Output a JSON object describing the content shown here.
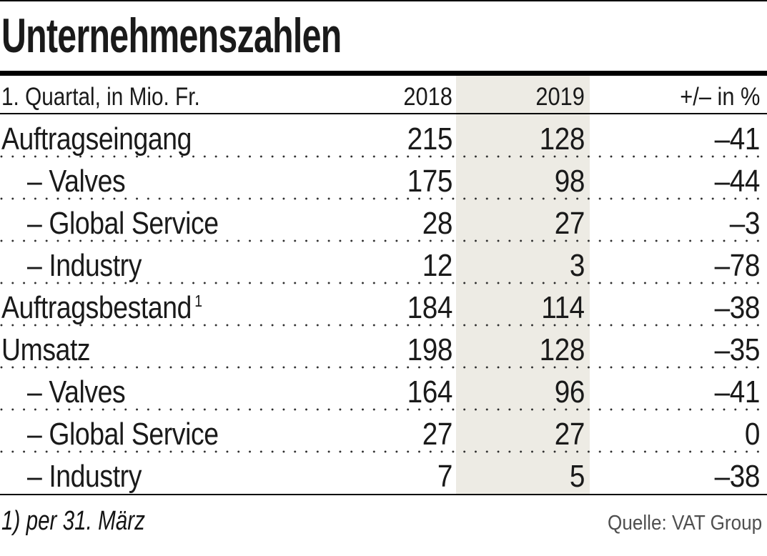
{
  "title": "Unternehmenszahlen",
  "table": {
    "header": {
      "label": "1. Quartal, in Mio. Fr.",
      "col_2018": "2018",
      "col_2019": "2019",
      "col_change": "+/– in %"
    },
    "rows": [
      {
        "label": "Auftragseingang",
        "indent": false,
        "v2018": "215",
        "v2019": "128",
        "change": "–41"
      },
      {
        "label": "– Valves",
        "indent": true,
        "v2018": "175",
        "v2019": "98",
        "change": "–44"
      },
      {
        "label": "– Global Service",
        "indent": true,
        "v2018": "28",
        "v2019": "27",
        "change": "–3"
      },
      {
        "label": "– Industry",
        "indent": true,
        "v2018": "12",
        "v2019": "3",
        "change": "–78"
      },
      {
        "label": "Auftragsbestand",
        "sup": "1",
        "indent": false,
        "v2018": "184",
        "v2019": "114",
        "change": "–38"
      },
      {
        "label": "Umsatz",
        "indent": false,
        "v2018": "198",
        "v2019": "128",
        "change": "–35"
      },
      {
        "label": "– Valves",
        "indent": true,
        "v2018": "164",
        "v2019": "96",
        "change": "–41"
      },
      {
        "label": "– Global Service",
        "indent": true,
        "v2018": "27",
        "v2019": "27",
        "change": "0"
      },
      {
        "label": "– Industry",
        "indent": true,
        "v2018": "7",
        "v2019": "5",
        "change": "–38"
      }
    ]
  },
  "footer": {
    "footnote": "1) per 31. März",
    "source": "Quelle: VAT Group"
  },
  "colors": {
    "text": "#1a1a1a",
    "rules": "#000000",
    "highlight_band_2019": "#edebe4",
    "dotted_separator": "#2b2b2b",
    "source_text": "#4f4f4f"
  },
  "chart_data": {
    "type": "table",
    "title": "Unternehmenszahlen",
    "unit_note": "1. Quartal, in Mio. Fr.",
    "columns": [
      "1. Quartal, in Mio. Fr.",
      "2018",
      "2019",
      "+/– in %"
    ],
    "rows": [
      {
        "label": "Auftragseingang",
        "values_2018": 215,
        "values_2019": 128,
        "change_pct": -41
      },
      {
        "label": "– Valves",
        "values_2018": 175,
        "values_2019": 98,
        "change_pct": -44
      },
      {
        "label": "– Global Service",
        "values_2018": 28,
        "values_2019": 27,
        "change_pct": -3
      },
      {
        "label": "– Industry",
        "values_2018": 12,
        "values_2019": 3,
        "change_pct": -78
      },
      {
        "label": "Auftragsbestand¹",
        "values_2018": 184,
        "values_2019": 114,
        "change_pct": -38
      },
      {
        "label": "Umsatz",
        "values_2018": 198,
        "values_2019": 128,
        "change_pct": -35
      },
      {
        "label": "– Valves",
        "values_2018": 164,
        "values_2019": 96,
        "change_pct": -41
      },
      {
        "label": "– Global Service",
        "values_2018": 27,
        "values_2019": 27,
        "change_pct": 0
      },
      {
        "label": "– Industry",
        "values_2018": 7,
        "values_2019": 5,
        "change_pct": -38
      }
    ],
    "footnote": "1) per 31. März",
    "source": "Quelle: VAT Group",
    "layout_hints": {
      "highlighted_column": "2019",
      "row_separators": "dotted"
    }
  }
}
